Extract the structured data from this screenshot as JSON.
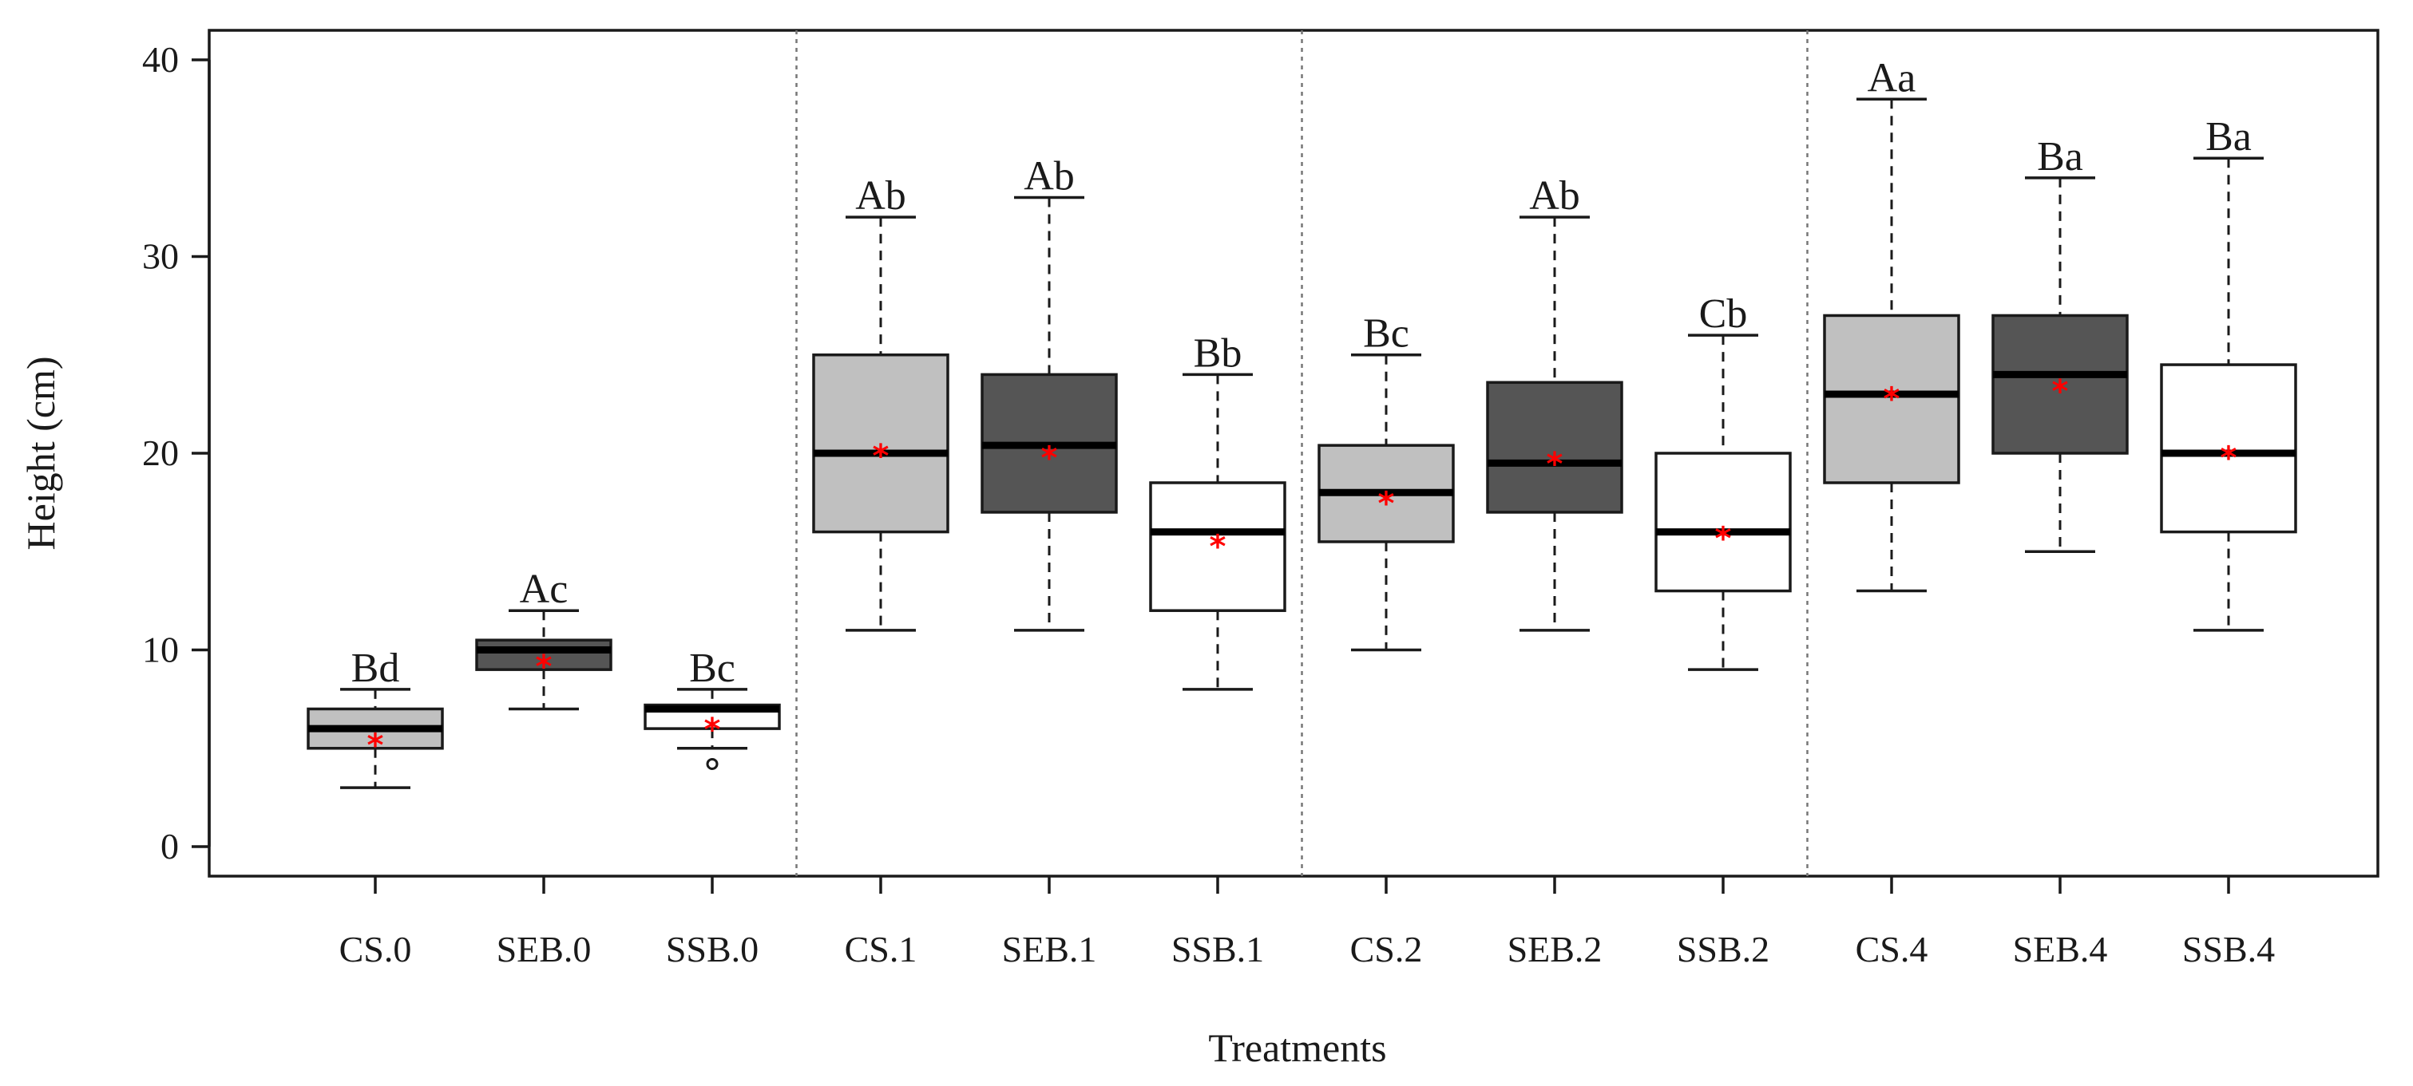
{
  "chart_data": {
    "type": "box",
    "title": "",
    "xlabel": "Treatments",
    "ylabel": "Height (cm)",
    "ylim": [
      -1.5,
      41.5
    ],
    "yticks": [
      0,
      10,
      20,
      30,
      40
    ],
    "grid": false,
    "fill_colors": {
      "CS": "#c0c0c0",
      "SEB": "#555555",
      "SSB": "#ffffff"
    },
    "mean_marker": {
      "symbol": "*",
      "color": "#ff0000"
    },
    "group_separators_after": [
      "SSB.0",
      "SSB.1",
      "SSB.2"
    ],
    "categories": [
      "CS.0",
      "SEB.0",
      "SSB.0",
      "CS.1",
      "SEB.1",
      "SSB.1",
      "CS.2",
      "SEB.2",
      "SSB.2",
      "CS.4",
      "SEB.4",
      "SSB.4"
    ],
    "boxes": [
      {
        "label": "CS.0",
        "fill": "CS",
        "whisker_low": 3,
        "q1": 5,
        "median": 6,
        "q3": 7,
        "whisker_high": 8,
        "mean": 5.7,
        "outliers": [],
        "letter": "Bd"
      },
      {
        "label": "SEB.0",
        "fill": "SEB",
        "whisker_low": 7,
        "q1": 9,
        "median": 10,
        "q3": 10.5,
        "whisker_high": 12,
        "mean": 9.7,
        "outliers": [],
        "letter": "Ac"
      },
      {
        "label": "SSB.0",
        "fill": "SSB",
        "whisker_low": 5,
        "q1": 6,
        "median": 7,
        "q3": 7.2,
        "whisker_high": 8,
        "mean": 6.5,
        "outliers": [
          4.2
        ],
        "letter": "Bc"
      },
      {
        "label": "CS.1",
        "fill": "CS",
        "whisker_low": 11,
        "q1": 16,
        "median": 20,
        "q3": 25,
        "whisker_high": 32,
        "mean": 20.4,
        "outliers": [],
        "letter": "Ab"
      },
      {
        "label": "SEB.1",
        "fill": "SEB",
        "whisker_low": 11,
        "q1": 17,
        "median": 20.4,
        "q3": 24,
        "whisker_high": 33,
        "mean": 20.3,
        "outliers": [],
        "letter": "Ab"
      },
      {
        "label": "SSB.1",
        "fill": "SSB",
        "whisker_low": 8,
        "q1": 12,
        "median": 16,
        "q3": 18.5,
        "whisker_high": 24,
        "mean": 15.8,
        "outliers": [],
        "letter": "Bb"
      },
      {
        "label": "CS.2",
        "fill": "CS",
        "whisker_low": 10,
        "q1": 15.5,
        "median": 18,
        "q3": 20.4,
        "whisker_high": 25,
        "mean": 18,
        "outliers": [],
        "letter": "Bc"
      },
      {
        "label": "SEB.2",
        "fill": "SEB",
        "whisker_low": 11,
        "q1": 17,
        "median": 19.5,
        "q3": 23.6,
        "whisker_high": 32,
        "mean": 20,
        "outliers": [],
        "letter": "Ab"
      },
      {
        "label": "SSB.2",
        "fill": "SSB",
        "whisker_low": 9,
        "q1": 13,
        "median": 16,
        "q3": 20,
        "whisker_high": 26,
        "mean": 16.2,
        "outliers": [],
        "letter": "Cb"
      },
      {
        "label": "CS.4",
        "fill": "CS",
        "whisker_low": 13,
        "q1": 18.5,
        "median": 23,
        "q3": 27,
        "whisker_high": 38,
        "mean": 23.3,
        "outliers": [],
        "letter": "Aa"
      },
      {
        "label": "SEB.4",
        "fill": "SEB",
        "whisker_low": 15,
        "q1": 20,
        "median": 24,
        "q3": 27,
        "whisker_high": 34,
        "mean": 23.7,
        "outliers": [],
        "letter": "Ba"
      },
      {
        "label": "SSB.4",
        "fill": "SSB",
        "whisker_low": 11,
        "q1": 16,
        "median": 20,
        "q3": 24.5,
        "whisker_high": 35,
        "mean": 20.3,
        "outliers": [],
        "letter": "Ba"
      }
    ]
  }
}
